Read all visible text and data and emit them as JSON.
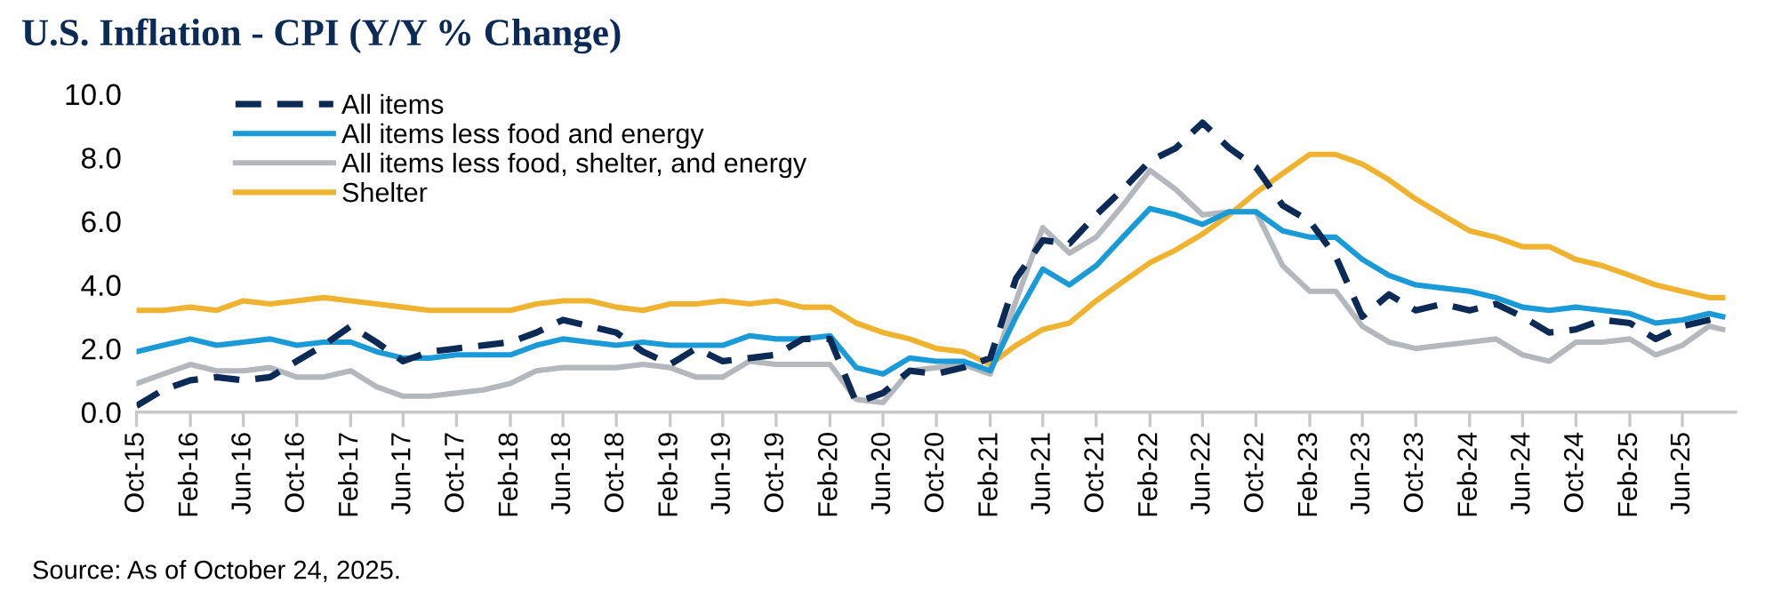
{
  "chart_data": {
    "type": "line",
    "title": "U.S. Inflation - CPI (Y/Y % Change)",
    "annotations": [
      "Source: As of October 24, 2025."
    ],
    "x": [
      "2015-10",
      "2015-12",
      "2016-02",
      "2016-04",
      "2016-06",
      "2016-08",
      "2016-10",
      "2016-12",
      "2017-02",
      "2017-04",
      "2017-06",
      "2017-08",
      "2017-10",
      "2017-12",
      "2018-02",
      "2018-04",
      "2018-06",
      "2018-08",
      "2018-10",
      "2018-12",
      "2019-02",
      "2019-04",
      "2019-06",
      "2019-08",
      "2019-10",
      "2019-12",
      "2020-02",
      "2020-04",
      "2020-06",
      "2020-08",
      "2020-10",
      "2020-12",
      "2021-02",
      "2021-04",
      "2021-06",
      "2021-08",
      "2021-10",
      "2021-12",
      "2022-02",
      "2022-04",
      "2022-06",
      "2022-08",
      "2022-10",
      "2022-12",
      "2023-02",
      "2023-04",
      "2023-06",
      "2023-08",
      "2023-10",
      "2023-12",
      "2024-02",
      "2024-04",
      "2024-06",
      "2024-08",
      "2024-10",
      "2024-12",
      "2025-02",
      "2025-04",
      "2025-06",
      "2025-08",
      "2025-09"
    ],
    "series": [
      {
        "name": "All items",
        "color": "#0b2a55",
        "line_style": "dashed",
        "values": [
          0.2,
          0.7,
          1.0,
          1.1,
          1.0,
          1.1,
          1.6,
          2.1,
          2.7,
          2.2,
          1.6,
          1.9,
          2.0,
          2.1,
          2.2,
          2.5,
          2.9,
          2.7,
          2.5,
          1.9,
          1.5,
          2.0,
          1.6,
          1.7,
          1.8,
          2.3,
          2.3,
          0.3,
          0.6,
          1.3,
          1.2,
          1.4,
          1.7,
          4.2,
          5.4,
          5.3,
          6.2,
          7.0,
          7.9,
          8.3,
          9.1,
          8.3,
          7.7,
          6.5,
          6.0,
          4.9,
          3.0,
          3.7,
          3.2,
          3.4,
          3.2,
          3.4,
          3.0,
          2.5,
          2.6,
          2.9,
          2.8,
          2.3,
          2.7,
          2.9,
          3.0
        ]
      },
      {
        "name": "All items less food and energy",
        "color": "#1a9ad6",
        "line_style": "solid",
        "values": [
          1.9,
          2.1,
          2.3,
          2.1,
          2.2,
          2.3,
          2.1,
          2.2,
          2.2,
          1.9,
          1.7,
          1.7,
          1.8,
          1.8,
          1.8,
          2.1,
          2.3,
          2.2,
          2.1,
          2.2,
          2.1,
          2.1,
          2.1,
          2.4,
          2.3,
          2.3,
          2.4,
          1.4,
          1.2,
          1.7,
          1.6,
          1.6,
          1.3,
          3.0,
          4.5,
          4.0,
          4.6,
          5.5,
          6.4,
          6.2,
          5.9,
          6.3,
          6.3,
          5.7,
          5.5,
          5.5,
          4.8,
          4.3,
          4.0,
          3.9,
          3.8,
          3.6,
          3.3,
          3.2,
          3.3,
          3.2,
          3.1,
          2.8,
          2.9,
          3.1,
          3.0
        ]
      },
      {
        "name": "All items less food, shelter, and energy",
        "color": "#b4b7bb",
        "line_style": "solid",
        "values": [
          0.9,
          1.2,
          1.5,
          1.3,
          1.3,
          1.4,
          1.1,
          1.1,
          1.3,
          0.8,
          0.5,
          0.5,
          0.6,
          0.7,
          0.9,
          1.3,
          1.4,
          1.4,
          1.4,
          1.5,
          1.4,
          1.1,
          1.1,
          1.6,
          1.5,
          1.5,
          1.5,
          0.4,
          0.3,
          1.3,
          1.4,
          1.5,
          1.2,
          3.5,
          5.8,
          5.0,
          5.5,
          6.5,
          7.6,
          7.0,
          6.2,
          6.3,
          6.3,
          4.6,
          3.8,
          3.8,
          2.7,
          2.2,
          2.0,
          2.1,
          2.2,
          2.3,
          1.8,
          1.6,
          2.2,
          2.2,
          2.3,
          1.8,
          2.1,
          2.7,
          2.6
        ]
      },
      {
        "name": "Shelter",
        "color": "#f0b330",
        "line_style": "solid",
        "values": [
          3.2,
          3.2,
          3.3,
          3.2,
          3.5,
          3.4,
          3.5,
          3.6,
          3.5,
          3.4,
          3.3,
          3.2,
          3.2,
          3.2,
          3.2,
          3.4,
          3.5,
          3.5,
          3.3,
          3.2,
          3.4,
          3.4,
          3.5,
          3.4,
          3.5,
          3.3,
          3.3,
          2.8,
          2.5,
          2.3,
          2.0,
          1.9,
          1.5,
          2.1,
          2.6,
          2.8,
          3.5,
          4.1,
          4.7,
          5.1,
          5.6,
          6.2,
          6.9,
          7.5,
          8.1,
          8.1,
          7.8,
          7.3,
          6.7,
          6.2,
          5.7,
          5.5,
          5.2,
          5.2,
          4.8,
          4.6,
          4.3,
          4.0,
          3.8,
          3.6,
          3.6
        ]
      }
    ],
    "xlim": [
      "2015-10",
      "2025-10"
    ],
    "xticks": [
      {
        "value": "2015-10",
        "label": "Oct-15"
      },
      {
        "value": "2016-02",
        "label": "Feb-16"
      },
      {
        "value": "2016-06",
        "label": "Jun-16"
      },
      {
        "value": "2016-10",
        "label": "Oct-16"
      },
      {
        "value": "2017-02",
        "label": "Feb-17"
      },
      {
        "value": "2017-06",
        "label": "Jun-17"
      },
      {
        "value": "2017-10",
        "label": "Oct-17"
      },
      {
        "value": "2018-02",
        "label": "Feb-18"
      },
      {
        "value": "2018-06",
        "label": "Jun-18"
      },
      {
        "value": "2018-10",
        "label": "Oct-18"
      },
      {
        "value": "2019-02",
        "label": "Feb-19"
      },
      {
        "value": "2019-06",
        "label": "Jun-19"
      },
      {
        "value": "2019-10",
        "label": "Oct-19"
      },
      {
        "value": "2020-02",
        "label": "Feb-20"
      },
      {
        "value": "2020-06",
        "label": "Jun-20"
      },
      {
        "value": "2020-10",
        "label": "Oct-20"
      },
      {
        "value": "2021-02",
        "label": "Feb-21"
      },
      {
        "value": "2021-06",
        "label": "Jun-21"
      },
      {
        "value": "2021-10",
        "label": "Oct-21"
      },
      {
        "value": "2022-02",
        "label": "Feb-22"
      },
      {
        "value": "2022-06",
        "label": "Jun-22"
      },
      {
        "value": "2022-10",
        "label": "Oct-22"
      },
      {
        "value": "2023-02",
        "label": "Feb-23"
      },
      {
        "value": "2023-06",
        "label": "Jun-23"
      },
      {
        "value": "2023-10",
        "label": "Oct-23"
      },
      {
        "value": "2024-02",
        "label": "Feb-24"
      },
      {
        "value": "2024-06",
        "label": "Jun-24"
      },
      {
        "value": "2024-10",
        "label": "Oct-24"
      },
      {
        "value": "2025-02",
        "label": "Feb-25"
      },
      {
        "value": "2025-06",
        "label": "Jun-25"
      }
    ],
    "ylim": [
      0,
      10
    ],
    "yticks": [
      {
        "value": 0,
        "label": "0.0"
      },
      {
        "value": 2,
        "label": "2.0"
      },
      {
        "value": 4,
        "label": "4.0"
      },
      {
        "value": 6,
        "label": "6.0"
      },
      {
        "value": 8,
        "label": "8.0"
      },
      {
        "value": 10,
        "label": "10.0"
      }
    ],
    "grid": false,
    "legend": "top left",
    "marker": "none"
  }
}
